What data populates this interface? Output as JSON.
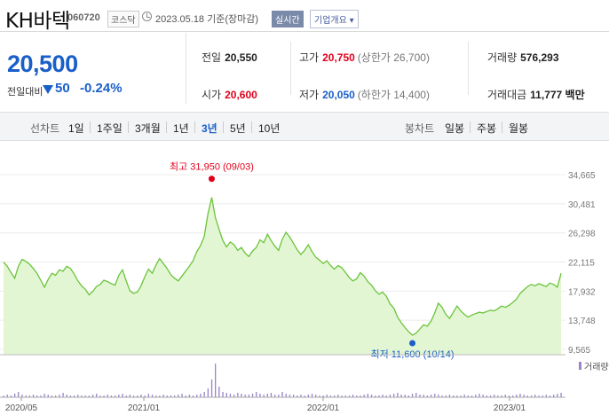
{
  "header": {
    "title": "KH바텍",
    "code": "060720",
    "market": "코스닥",
    "date_text": "2023.05.18 기준(장마감)",
    "realtime_label": "실시간",
    "info_button": "기업개요 ▾"
  },
  "price": {
    "current": "20,500",
    "change_label": "전일대비",
    "change": "50",
    "change_pct": "-0.24%"
  },
  "quote": {
    "prev_label": "전일",
    "prev": "20,550",
    "high_label": "고가",
    "high": "20,750",
    "upper_limit": "(상한가 26,700)",
    "volume_label": "거래량",
    "volume": "576,293",
    "open_label": "시가",
    "open": "20,600",
    "low_label": "저가",
    "low": "20,050",
    "lower_limit": "(하한가 14,400)",
    "amount_label": "거래대금",
    "amount": "11,777 백만"
  },
  "periods": {
    "line_label": "선차트",
    "items": [
      "1일",
      "1주일",
      "3개월",
      "1년",
      "3년",
      "5년",
      "10년"
    ],
    "active": "3년",
    "candle_label": "봉차트",
    "candle_items": [
      "일봉",
      "주봉",
      "월봉"
    ]
  },
  "colors": {
    "price_down": "#1a5fc8",
    "price_up": "#e0001b",
    "line": "#6ac43a",
    "fill": "#e3f6d4",
    "volume": "#9a83c9"
  },
  "chart_data": {
    "type": "area",
    "y_ticks": [
      "34,665",
      "30,481",
      "26,298",
      "22,115",
      "17,932",
      "13,748",
      "9,565"
    ],
    "ylim": [
      9565,
      34665
    ],
    "x_ticks": [
      "2020/05",
      "2021/01",
      "2022/01",
      "2023/01"
    ],
    "high_annotation": "최고 31,950 (09/03)",
    "low_annotation": "최저 11,600 (10/14)",
    "volume_label": "거래량",
    "series": [
      {
        "values": [
          22100,
          21500,
          20600,
          19800,
          21500,
          22500,
          22200,
          21800,
          21200,
          20500,
          19500,
          18500,
          19600,
          20500,
          20200,
          21000,
          20800,
          21500,
          21200,
          20400,
          19400,
          18700,
          18200,
          17400,
          17900,
          18600,
          18900,
          19500,
          19300,
          19000,
          18800,
          20200,
          21000,
          19400,
          18000,
          17600,
          17800,
          18700,
          20000,
          21100,
          20500,
          21700,
          22600,
          21900,
          21200,
          20300,
          19800,
          19400,
          20100,
          20800,
          21500,
          22300,
          23600,
          24500,
          25800,
          29100,
          31400,
          28500,
          26800,
          25200,
          24300,
          25000,
          24600,
          23800,
          24200,
          23400,
          22900,
          23700,
          24200,
          25300,
          24900,
          26100,
          25200,
          24400,
          23800,
          25400,
          26400,
          25700,
          24800,
          23900,
          23200,
          23800,
          24600,
          23600,
          22800,
          22400,
          21900,
          22300,
          21600,
          21100,
          21600,
          21300,
          20600,
          19900,
          19400,
          19700,
          20600,
          20100,
          19300,
          18800,
          18000,
          17500,
          17800,
          17200,
          16100,
          15500,
          14200,
          13400,
          12700,
          12100,
          11600,
          11900,
          12500,
          13100,
          12900,
          13600,
          14800,
          16200,
          15600,
          14600,
          14000,
          14900,
          15800,
          15100,
          14600,
          14200,
          14500,
          14700,
          14900,
          14800,
          15000,
          15200,
          15100,
          15400,
          15800,
          15600,
          15900,
          16300,
          16800,
          17600,
          18100,
          18600,
          18900,
          18700,
          19000,
          18800,
          18600,
          19100,
          18900,
          18500,
          20500
        ],
        "volume": [
          2,
          3,
          2,
          4,
          6,
          3,
          2,
          2,
          3,
          2,
          2,
          4,
          3,
          2,
          2,
          3,
          5,
          3,
          2,
          2,
          3,
          2,
          2,
          2,
          3,
          4,
          2,
          2,
          3,
          2,
          2,
          3,
          4,
          2,
          3,
          2,
          2,
          3,
          2,
          4,
          3,
          2,
          2,
          3,
          2,
          2,
          2,
          3,
          4,
          2,
          3,
          2,
          3,
          4,
          6,
          10,
          20,
          38,
          12,
          6,
          5,
          4,
          3,
          5,
          4,
          3,
          3,
          4,
          6,
          4,
          3,
          4,
          5,
          3,
          3,
          6,
          4,
          3,
          3,
          2,
          3,
          2,
          3,
          4,
          3,
          2,
          2,
          3,
          2,
          2,
          3,
          2,
          2,
          2,
          3,
          2,
          2,
          3,
          4,
          3,
          2,
          2,
          3,
          2,
          3,
          4,
          5,
          3,
          3,
          2,
          4,
          5,
          3,
          3,
          2,
          3,
          4,
          3,
          2,
          2,
          3,
          2,
          2,
          2,
          3,
          2,
          2,
          3,
          4,
          3,
          2,
          2,
          3,
          2,
          2,
          3,
          2,
          2,
          3,
          4,
          3,
          2,
          2,
          3,
          2,
          2,
          3,
          2,
          3,
          4,
          5
        ]
      }
    ]
  }
}
